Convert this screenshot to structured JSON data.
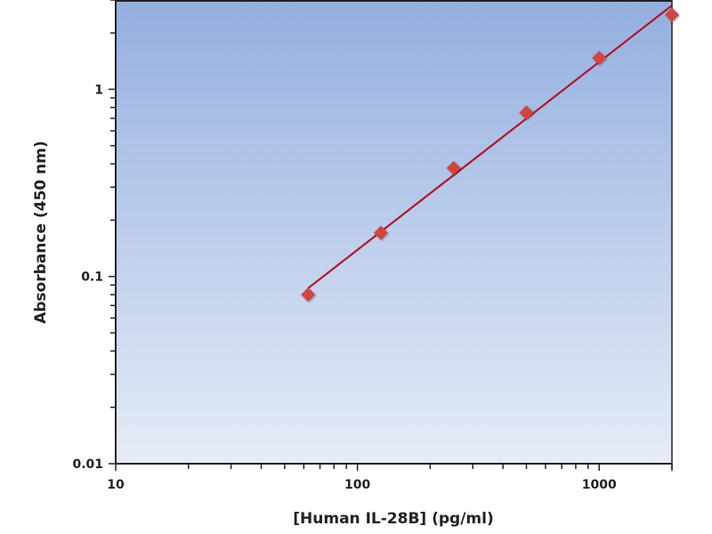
{
  "chart_data": {
    "type": "scatter",
    "title": "",
    "xlabel": "[Human IL-28B] (pg/ml)",
    "ylabel": "Absorbance (450 nm)",
    "x_scale": "log",
    "y_scale": "log",
    "xlim": [
      10,
      2000
    ],
    "ylim": [
      0.01,
      3
    ],
    "x_ticks": [
      {
        "value": 10,
        "label": "10"
      },
      {
        "value": 100,
        "label": "100"
      },
      {
        "value": 1000,
        "label": "1000"
      }
    ],
    "y_ticks": [
      {
        "value": 0.01,
        "label": "0.01"
      },
      {
        "value": 0.1,
        "label": "0.1"
      },
      {
        "value": 1,
        "label": "1"
      }
    ],
    "grid": false,
    "legend": "none",
    "series": [
      {
        "x": [
          62.5,
          125,
          250,
          500,
          1000,
          2000
        ],
        "y": [
          0.08,
          0.171,
          0.38,
          0.75,
          1.47,
          2.5
        ],
        "marker": "diamond",
        "fit_line": true
      }
    ],
    "colors": {
      "marker": "#d0453f",
      "fit_line": "#b0182a",
      "background_top": "#93afe0",
      "background_bottom": "#e6ecf7",
      "axis": "#222222"
    }
  }
}
